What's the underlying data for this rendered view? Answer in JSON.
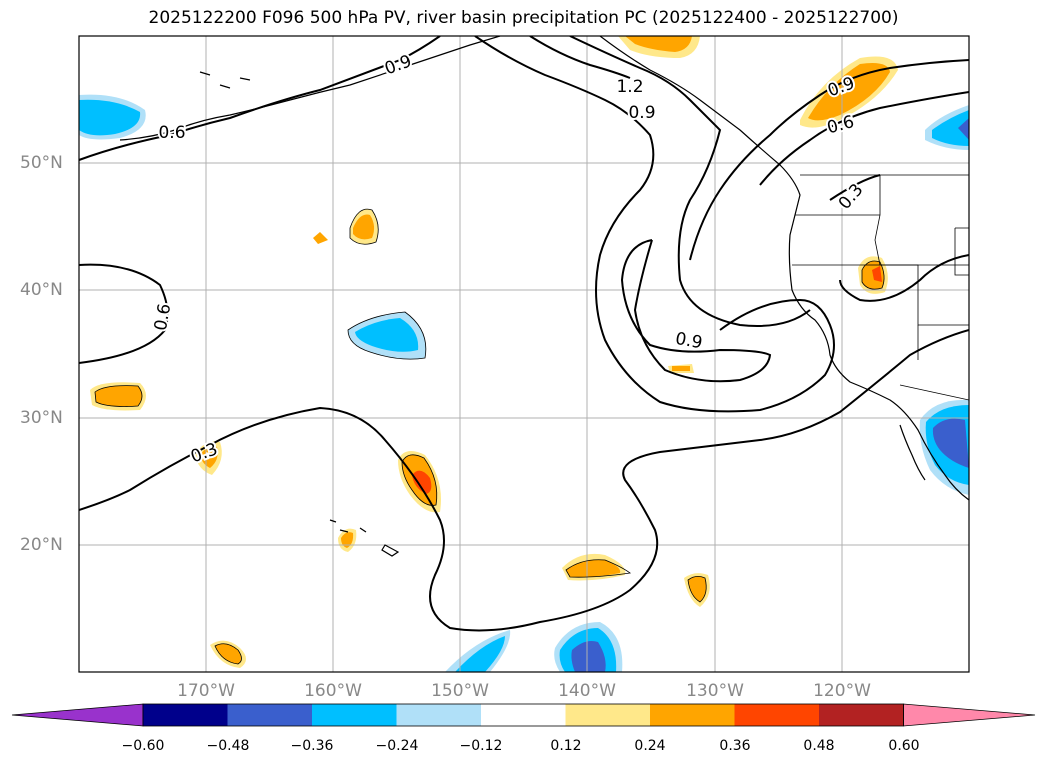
{
  "title": "2025122200 F096 500 hPa PV, river basin precipitation PC (2025122400 - 2025122700)",
  "lat_labels": [
    "50°N",
    "40°N",
    "30°N",
    "20°N"
  ],
  "lon_labels": [
    "170°W",
    "160°W",
    "150°W",
    "140°W",
    "130°W",
    "120°W"
  ],
  "contour_labels": [
    "0.6",
    "0.6",
    "0.3",
    "1.2",
    "0.9",
    "0.9",
    "0.9",
    "0.6",
    "0.3",
    "0.9"
  ],
  "colorbar": {
    "ticks": [
      "−0.60",
      "−0.48",
      "−0.36",
      "−0.24",
      "−0.12",
      "0.12",
      "0.24",
      "0.36",
      "0.48",
      "0.60"
    ],
    "colors": [
      "#9932cc",
      "#00008b",
      "#3a5fcd",
      "#00bfff",
      "#b0e0f8",
      "#ffffff",
      "#ffe88a",
      "#ffa500",
      "#ff4500",
      "#b22222",
      "#ff88aa"
    ]
  },
  "palette": {
    "orange": "#ffa500",
    "light_yellow": "#ffe88a",
    "red": "#ff4500",
    "sky": "#00bfff",
    "light_blue": "#b0e0f8",
    "royal": "#3a5fcd"
  }
}
